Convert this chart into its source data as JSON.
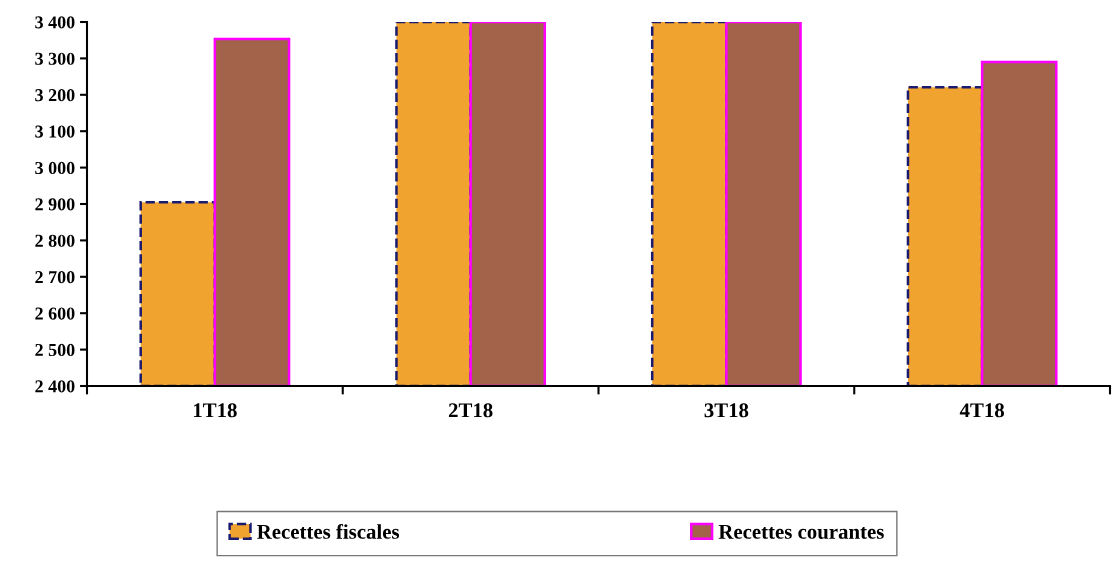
{
  "chart_data": {
    "type": "bar",
    "categories": [
      "1T18",
      "2T18",
      "3T18",
      "4T18"
    ],
    "series": [
      {
        "name": "Recettes fiscales",
        "color": "#f0a32f",
        "values": [
          2905,
          3400,
          3400,
          3221
        ]
      },
      {
        "name": "Recettes courantes",
        "color": "#a3634b",
        "values": [
          3353,
          3400,
          3400,
          3290
        ]
      }
    ],
    "ylim": [
      2400,
      3400
    ],
    "yticks": [
      {
        "value": 2400,
        "label": "2 400"
      },
      {
        "value": 2500,
        "label": "2 500"
      },
      {
        "value": 2600,
        "label": "2 600"
      },
      {
        "value": 2700,
        "label": "2 700"
      },
      {
        "value": 2800,
        "label": "2 800"
      },
      {
        "value": 2900,
        "label": "2 900"
      },
      {
        "value": 3000,
        "label": "3 000"
      },
      {
        "value": 3100,
        "label": "3 100"
      },
      {
        "value": 3200,
        "label": "3 200"
      },
      {
        "value": 3300,
        "label": "3 300"
      },
      {
        "value": 3400,
        "label": "3 400"
      }
    ],
    "grid": false,
    "legend": "bottom"
  }
}
